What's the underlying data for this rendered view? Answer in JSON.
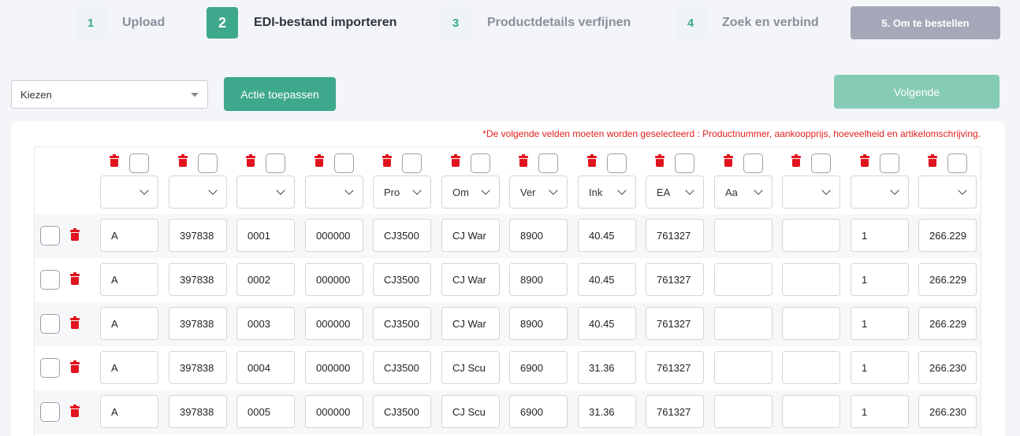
{
  "steps": [
    {
      "num": "1",
      "label": "Upload"
    },
    {
      "num": "2",
      "label": "EDI-bestand importeren"
    },
    {
      "num": "3",
      "label": "Productdetails verfijnen"
    },
    {
      "num": "4",
      "label": "Zoek en verbind"
    }
  ],
  "final_step_label": "5. Om te bestellen",
  "action_select": {
    "value": "Kiezen"
  },
  "apply_label": "Actie toepassen",
  "next_label": "Volgende",
  "required_note": "*De volgende velden moeten worden geselecteerd : Productnummer, aankoopprijs, hoeveelheid en artikelomschrijving.",
  "column_selects": [
    "",
    "",
    "",
    "",
    "Pro",
    "Om",
    "Ver",
    "Ink",
    "EA",
    "Aa",
    "",
    "",
    ""
  ],
  "rows": [
    [
      "A",
      "397838",
      "0001",
      "000000",
      "CJ3500",
      "CJ War",
      "8900",
      "40.45",
      "761327",
      "",
      "",
      "1",
      "266.229"
    ],
    [
      "A",
      "397838",
      "0002",
      "000000",
      "CJ3500",
      "CJ War",
      "8900",
      "40.45",
      "761327",
      "",
      "",
      "1",
      "266.229"
    ],
    [
      "A",
      "397838",
      "0003",
      "000000",
      "CJ3500",
      "CJ War",
      "8900",
      "40.45",
      "761327",
      "",
      "",
      "1",
      "266.229"
    ],
    [
      "A",
      "397838",
      "0004",
      "000000",
      "CJ3500",
      "CJ Scu",
      "6900",
      "31.36",
      "761327",
      "",
      "",
      "1",
      "266.230"
    ],
    [
      "A",
      "397838",
      "0005",
      "000000",
      "CJ3500",
      "CJ Scu",
      "6900",
      "31.36",
      "761327",
      "",
      "",
      "1",
      "266.230"
    ]
  ],
  "colors": {
    "accent": "#3ea88c",
    "accent_light": "#86cbb5",
    "danger": "#e0141e",
    "final_step": "#a5a8b8"
  }
}
